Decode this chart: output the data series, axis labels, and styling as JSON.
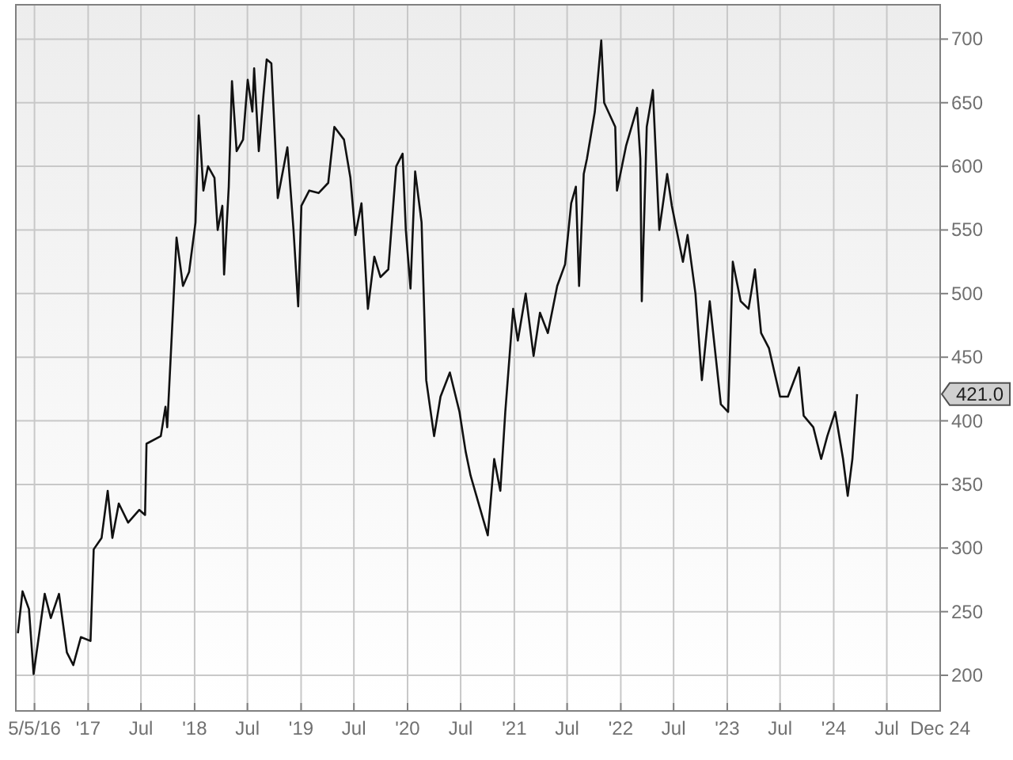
{
  "chart_data": {
    "type": "line",
    "xlim": [
      "2016-04-28",
      "2024-12-31"
    ],
    "ylim": [
      172,
      727
    ],
    "xticks": [
      {
        "value": "2016-07-01",
        "label": "5/5/16"
      },
      {
        "value": "2017-01-01",
        "label": "'17"
      },
      {
        "value": "2017-07-01",
        "label": "Jul"
      },
      {
        "value": "2018-01-01",
        "label": "'18"
      },
      {
        "value": "2018-07-01",
        "label": "Jul"
      },
      {
        "value": "2019-01-01",
        "label": "'19"
      },
      {
        "value": "2019-07-01",
        "label": "Jul"
      },
      {
        "value": "2020-01-01",
        "label": "'20"
      },
      {
        "value": "2020-07-01",
        "label": "Jul"
      },
      {
        "value": "2021-01-01",
        "label": "'21"
      },
      {
        "value": "2021-07-01",
        "label": "Jul"
      },
      {
        "value": "2022-01-01",
        "label": "'22"
      },
      {
        "value": "2022-07-01",
        "label": "Jul"
      },
      {
        "value": "2023-01-01",
        "label": "'23"
      },
      {
        "value": "2023-07-01",
        "label": "Jul"
      },
      {
        "value": "2024-01-01",
        "label": "'24"
      },
      {
        "value": "2024-07-01",
        "label": "Jul"
      },
      {
        "value": "2024-12-31",
        "label": "Dec 24"
      }
    ],
    "yticks": [
      200,
      250,
      300,
      350,
      400,
      450,
      500,
      550,
      600,
      650,
      700
    ],
    "grid": true,
    "marker": "none",
    "line_style": "solid",
    "annotations": [
      "421.0"
    ],
    "series": [
      {
        "color": "#111111",
        "x": [
          "2016-05-05",
          "2016-05-21",
          "2016-06-12",
          "2016-06-28",
          "2016-08-05",
          "2016-08-26",
          "2016-09-23",
          "2016-10-20",
          "2016-11-11",
          "2016-12-07",
          "2017-01-09",
          "2017-01-20",
          "2017-02-16",
          "2017-03-09",
          "2017-03-25",
          "2017-04-16",
          "2017-05-18",
          "2017-06-25",
          "2017-07-15",
          "2017-07-20",
          "2017-09-07",
          "2017-09-23",
          "2017-09-29",
          "2017-10-15",
          "2017-10-31",
          "2017-11-22",
          "2017-12-13",
          "2018-01-04",
          "2018-01-15",
          "2018-01-31",
          "2018-02-16",
          "2018-03-10",
          "2018-03-21",
          "2018-04-06",
          "2018-04-12",
          "2018-04-28",
          "2018-05-09",
          "2018-05-25",
          "2018-06-16",
          "2018-07-02",
          "2018-07-18",
          "2018-07-24",
          "2018-08-09",
          "2018-08-25",
          "2018-09-05",
          "2018-09-21",
          "2018-10-13",
          "2018-11-15",
          "2018-12-06",
          "2018-12-22",
          "2019-01-02",
          "2019-01-29",
          "2019-03-02",
          "2019-04-04",
          "2019-04-25",
          "2019-05-28",
          "2019-06-19",
          "2019-07-06",
          "2019-07-27",
          "2019-08-18",
          "2019-09-09",
          "2019-09-30",
          "2019-10-27",
          "2019-11-23",
          "2019-12-15",
          "2019-12-26",
          "2020-01-11",
          "2020-01-27",
          "2020-02-18",
          "2020-03-05",
          "2020-04-01",
          "2020-04-23",
          "2020-05-25",
          "2020-06-27",
          "2020-07-18",
          "2020-08-04",
          "2020-10-02",
          "2020-10-24",
          "2020-11-14",
          "2020-12-01",
          "2020-12-28",
          "2021-01-13",
          "2021-02-09",
          "2021-03-08",
          "2021-03-30",
          "2021-04-26",
          "2021-05-28",
          "2021-06-24",
          "2021-07-15",
          "2021-07-31",
          "2021-08-11",
          "2021-08-27",
          "2021-09-07",
          "2021-10-04",
          "2021-10-26",
          "2021-11-05",
          "2021-12-13",
          "2021-12-19",
          "2022-01-19",
          "2022-02-26",
          "2022-03-09",
          "2022-03-14",
          "2022-03-31",
          "2022-04-21",
          "2022-05-13",
          "2022-06-09",
          "2022-06-25",
          "2022-08-02",
          "2022-08-18",
          "2022-09-14",
          "2022-10-06",
          "2022-11-02",
          "2022-12-10",
          "2023-01-04",
          "2023-01-20",
          "2023-02-16",
          "2023-03-15",
          "2023-04-06",
          "2023-04-27",
          "2023-05-24",
          "2023-07-01",
          "2023-07-28",
          "2023-09-04",
          "2023-09-20",
          "2023-10-23",
          "2023-11-19",
          "2023-12-10",
          "2024-01-06",
          "2024-02-02",
          "2024-02-18",
          "2024-03-05",
          "2024-03-21"
        ],
        "values": [
          233,
          266,
          252,
          201,
          264,
          245,
          264,
          218,
          208,
          230,
          227,
          299,
          308,
          345,
          308,
          335,
          320,
          330,
          326,
          382,
          388,
          411,
          395,
          469,
          544,
          506,
          517,
          556,
          640,
          581,
          600,
          591,
          550,
          569,
          515,
          584,
          667,
          612,
          621,
          668,
          643,
          677,
          612,
          656,
          684,
          681,
          575,
          615,
          550,
          490,
          569,
          581,
          579,
          587,
          631,
          621,
          591,
          546,
          571,
          488,
          529,
          513,
          519,
          600,
          610,
          550,
          504,
          596,
          556,
          432,
          388,
          419,
          438,
          407,
          376,
          357,
          310,
          370,
          345,
          407,
          488,
          463,
          500,
          451,
          485,
          469,
          506,
          523,
          571,
          584,
          506,
          594,
          606,
          643,
          699,
          650,
          631,
          581,
          616,
          646,
          606,
          494,
          631,
          660,
          550,
          594,
          569,
          525,
          546,
          500,
          432,
          494,
          413,
          407,
          525,
          494,
          488,
          519,
          469,
          457,
          419,
          419,
          442,
          404,
          395,
          370,
          388,
          407,
          370,
          341,
          370,
          421
        ]
      }
    ]
  }
}
